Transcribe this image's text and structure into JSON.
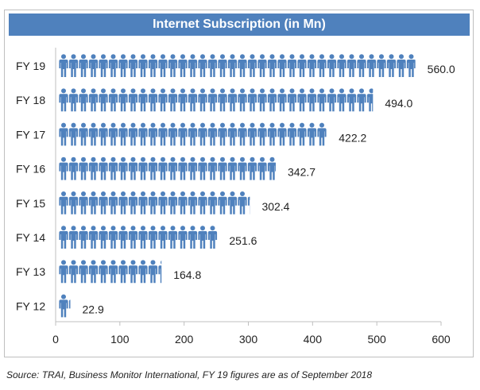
{
  "chart_data": {
    "type": "bar",
    "orientation": "horizontal",
    "title": "Internet Subscription (in Mn)",
    "categories": [
      "FY 19",
      "FY 18",
      "FY 17",
      "FY 16",
      "FY 15",
      "FY 14",
      "FY 13",
      "FY 12"
    ],
    "values": [
      560.0,
      494.0,
      422.2,
      342.7,
      302.4,
      251.6,
      164.8,
      22.9
    ],
    "value_labels": [
      "560.0",
      "494.0",
      "422.2",
      "342.7",
      "302.4",
      "251.6",
      "164.8",
      "22.9"
    ],
    "x_ticks": [
      "0",
      "100",
      "200",
      "300",
      "400",
      "500",
      "600"
    ],
    "xlim": [
      0,
      600
    ],
    "xlabel": "",
    "ylabel": "",
    "grid": false,
    "mark_style": "pictogram-person-icons",
    "colors": {
      "bar": "#4f81bd",
      "title_bg": "#4f81bd",
      "title_text": "#ffffff"
    }
  },
  "source_note": "Source: TRAI, Business Monitor International, FY 19 figures are as of September 2018"
}
